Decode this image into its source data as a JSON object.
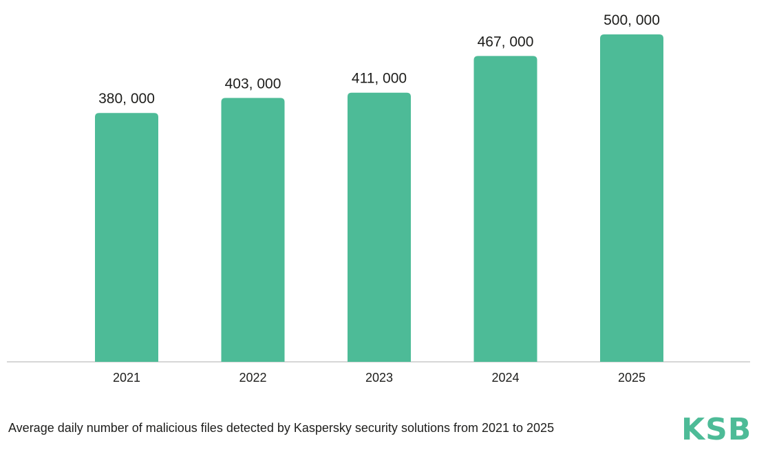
{
  "chart_data": {
    "type": "bar",
    "categories": [
      "2021",
      "2022",
      "2023",
      "2024",
      "2025"
    ],
    "values": [
      380000,
      403000,
      411000,
      467000,
      500000
    ],
    "value_labels": [
      "380, 000",
      "403, 000",
      "411, 000",
      "467, 000",
      "500, 000"
    ],
    "title": "",
    "xlabel": "",
    "ylabel": "",
    "ylim": [
      0,
      500000
    ],
    "grid": false,
    "legend": "none"
  },
  "caption": "Average daily number of malicious files detected by Kaspersky security solutions from 2021 to 2025",
  "logo": {
    "text": "KSB"
  },
  "colors": {
    "bar": "#4dbb97",
    "axis": "#c9c9c9",
    "text": "#1d1d1b",
    "brand": "#4dbb97"
  }
}
